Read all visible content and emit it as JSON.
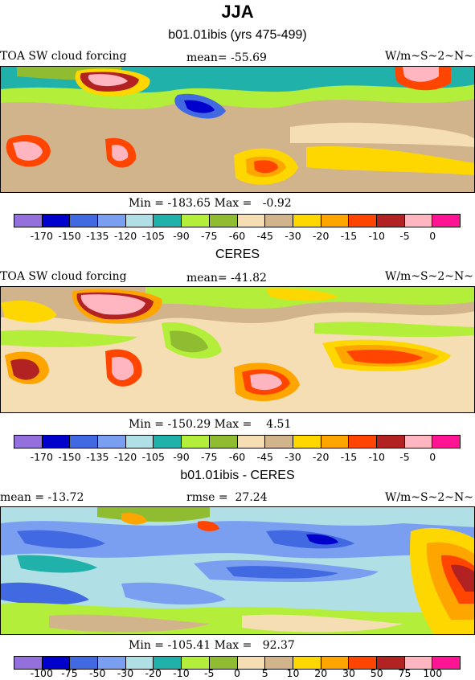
{
  "header": {
    "season": "JJA"
  },
  "panels": [
    {
      "id": "model",
      "subtitle": "b01.01ibis (yrs 475-499)",
      "left": "TOA SW cloud forcing",
      "center": "mean= -55.69",
      "right": "W/m~S~2~N~",
      "minmax": "Min = -183.65 Max =   -0.92",
      "tick_labels": [
        "-170",
        "-150",
        "-135",
        "-120",
        "-105",
        "-90",
        "-75",
        "-60",
        "-45",
        "-30",
        "-20",
        "-15",
        "-10",
        "-5",
        "0"
      ]
    },
    {
      "id": "obs",
      "subtitle": "CERES",
      "left": "TOA SW cloud forcing",
      "center": "mean= -41.82",
      "right": "W/m~S~2~N~",
      "minmax": "Min = -150.29 Max =    4.51",
      "tick_labels": [
        "-170",
        "-150",
        "-135",
        "-120",
        "-105",
        "-90",
        "-75",
        "-60",
        "-45",
        "-30",
        "-20",
        "-15",
        "-10",
        "-5",
        "0"
      ]
    },
    {
      "id": "diff",
      "subtitle": "b01.01ibis - CERES",
      "left": "mean = -13.72",
      "center": "rmse =  27.24",
      "right": "W/m~S~2~N~",
      "minmax": "Min = -105.41 Max =   92.37",
      "tick_labels": [
        "-100",
        "-75",
        "-50",
        "-30",
        "-20",
        "-10",
        "-5",
        "0",
        "5",
        "10",
        "20",
        "30",
        "50",
        "75",
        "100"
      ]
    }
  ],
  "colorbar_colors": [
    "#9370db",
    "#0000cd",
    "#4169e1",
    "#7b9ff0",
    "#b0e0e6",
    "#20b2aa",
    "#b3ee3a",
    "#8fbc30",
    "#f5deb3",
    "#d2b48c",
    "#ffd700",
    "#ffa500",
    "#ff4500",
    "#b22222",
    "#ffb6c1",
    "#ff1493"
  ]
}
